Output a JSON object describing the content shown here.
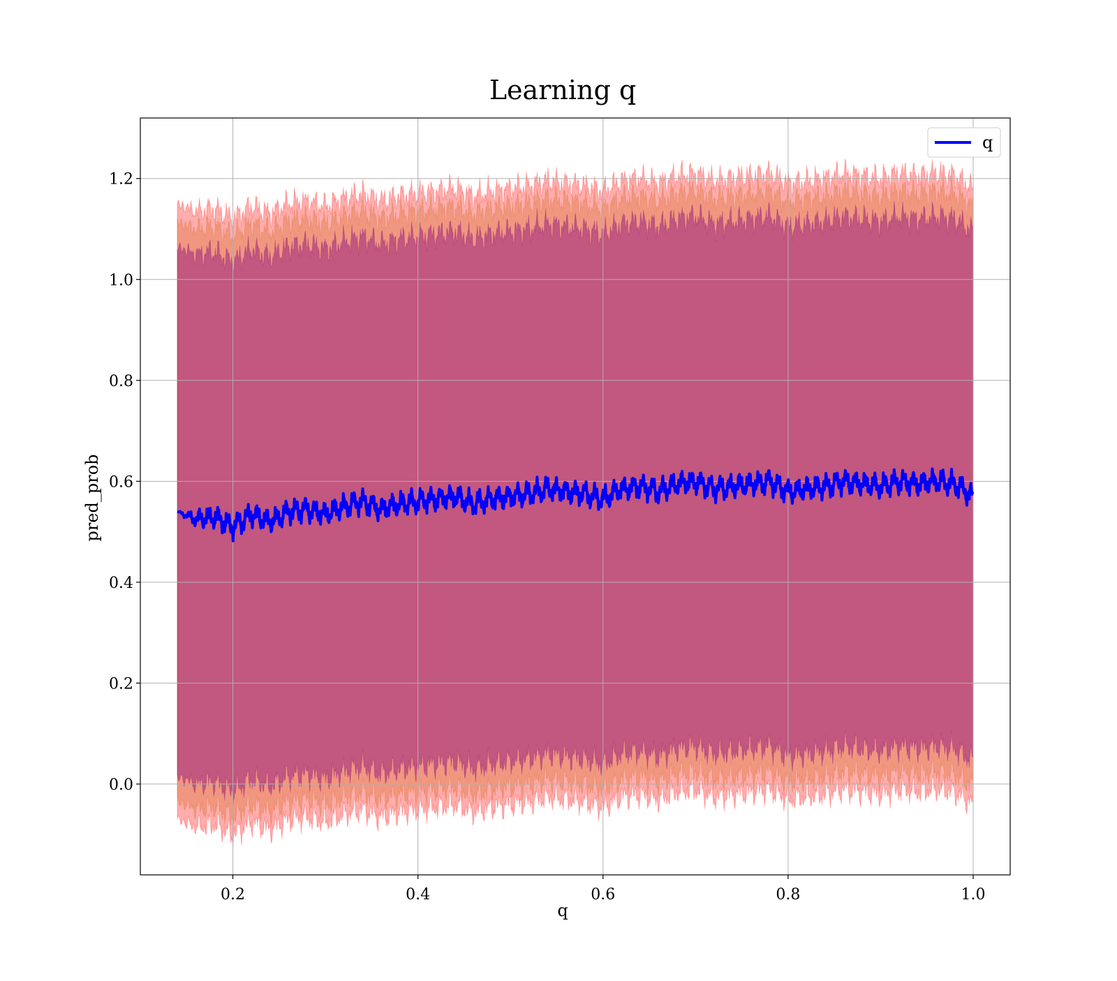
{
  "chart_data": {
    "type": "line",
    "title": "Learning q",
    "xlabel": "q",
    "ylabel": "pred_prob",
    "xlim": [
      0.1,
      1.04
    ],
    "ylim": [
      -0.18,
      1.32
    ],
    "xticks": [
      0.2,
      0.4,
      0.6,
      0.8,
      1.0
    ],
    "xtick_labels": [
      "0.2",
      "0.4",
      "0.6",
      "0.8",
      "1.0"
    ],
    "yticks": [
      0.0,
      0.2,
      0.4,
      0.6,
      0.8,
      1.0,
      1.2
    ],
    "ytick_labels": [
      "0.0",
      "0.2",
      "0.4",
      "0.6",
      "0.8",
      "1.0",
      "1.2"
    ],
    "grid": true,
    "legend": {
      "position": "top-right",
      "entries": [
        "q"
      ]
    },
    "colors": {
      "line": "#0000ff",
      "band": "#ff0000",
      "band_mid": "#d2691e",
      "band_inner": "#800080"
    },
    "band_half_widths": {
      "outer": 0.61,
      "middle": 0.575,
      "inner": 0.525
    },
    "series": [
      {
        "name": "q",
        "x": [
          0.14,
          0.16,
          0.18,
          0.2,
          0.22,
          0.24,
          0.26,
          0.28,
          0.3,
          0.32,
          0.34,
          0.36,
          0.38,
          0.4,
          0.42,
          0.44,
          0.46,
          0.48,
          0.5,
          0.52,
          0.54,
          0.56,
          0.58,
          0.6,
          0.62,
          0.64,
          0.66,
          0.68,
          0.7,
          0.72,
          0.74,
          0.76,
          0.78,
          0.8,
          0.82,
          0.84,
          0.86,
          0.88,
          0.9,
          0.92,
          0.94,
          0.96,
          0.98,
          1.0
        ],
        "values": [
          0.54,
          0.525,
          0.53,
          0.51,
          0.535,
          0.52,
          0.54,
          0.545,
          0.535,
          0.55,
          0.56,
          0.545,
          0.555,
          0.56,
          0.565,
          0.57,
          0.555,
          0.565,
          0.57,
          0.575,
          0.585,
          0.58,
          0.575,
          0.565,
          0.585,
          0.59,
          0.58,
          0.595,
          0.6,
          0.585,
          0.59,
          0.595,
          0.6,
          0.58,
          0.585,
          0.59,
          0.6,
          0.595,
          0.59,
          0.6,
          0.595,
          0.6,
          0.595,
          0.57
        ]
      }
    ]
  }
}
